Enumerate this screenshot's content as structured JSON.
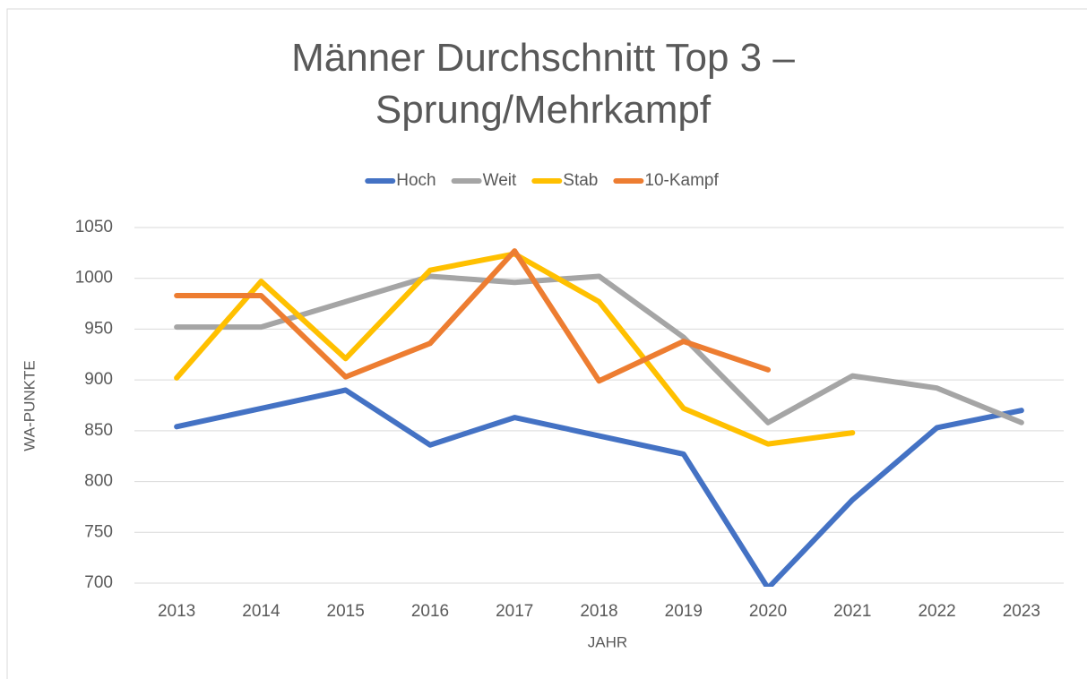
{
  "chart_data": {
    "type": "line",
    "title": "Männer Durchschnitt Top 3 – Sprung/Mehrkampf",
    "x_label": "JAHR",
    "y_label": "WA-PUNKTE",
    "categories": [
      "2013",
      "2014",
      "2015",
      "2016",
      "2017",
      "2018",
      "2019",
      "2020",
      "2021",
      "2022",
      "2023"
    ],
    "series": [
      {
        "name": "Hoch",
        "color": "#4472c4",
        "values": [
          854,
          872,
          890,
          836,
          863,
          845,
          827,
          695,
          782,
          853,
          870
        ]
      },
      {
        "name": "Weit",
        "color": "#a5a5a5",
        "values": [
          952,
          952,
          977,
          1002,
          996,
          1002,
          942,
          858,
          904,
          892,
          858
        ]
      },
      {
        "name": "Stab",
        "color": "#ffc000",
        "values": [
          902,
          997,
          921,
          1008,
          1024,
          977,
          872,
          837,
          848,
          null,
          null
        ]
      },
      {
        "name": "10-Kampf",
        "color": "#ed7d31",
        "values": [
          983,
          983,
          903,
          936,
          1027,
          899,
          938,
          910,
          null,
          null,
          null
        ]
      }
    ],
    "ylim": [
      700,
      1050
    ],
    "yticks": [
      700,
      750,
      800,
      850,
      900,
      950,
      1000,
      1050
    ],
    "grid": true,
    "legend": "top"
  }
}
